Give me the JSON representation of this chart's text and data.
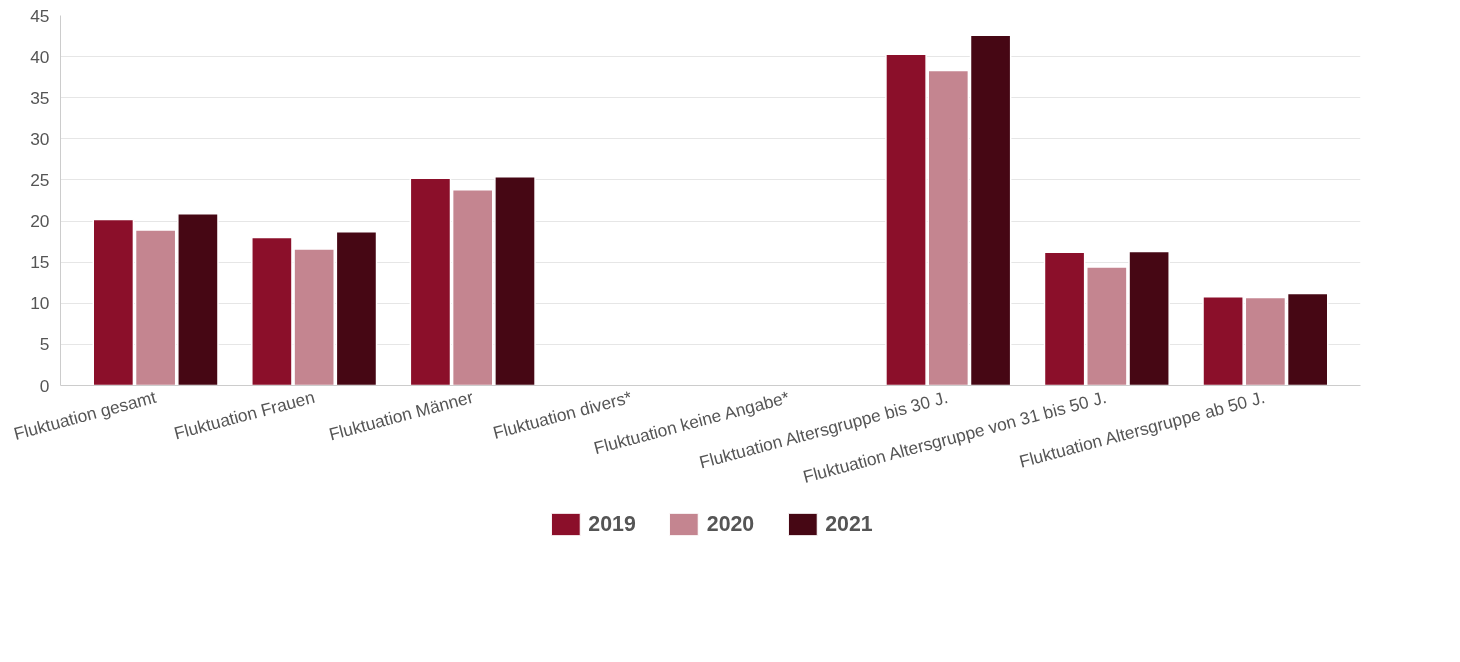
{
  "chart_data": {
    "type": "bar",
    "categories": [
      "Fluktuation gesamt",
      "Fluktuation Frauen",
      "Fluktuation Männer",
      "Fluktuation divers*",
      "Fluktuation keine Angabe*",
      "Fluktuation Altersgruppe bis 30 J.",
      "Fluktuation Altersgruppe von 31 bis 50 J.",
      "Fluktuation Altersgruppe ab 50 J."
    ],
    "series": [
      {
        "name": "2019",
        "color": "#8b0f2a",
        "values": [
          20.2,
          18.0,
          25.2,
          null,
          null,
          40.3,
          16.2,
          10.8
        ]
      },
      {
        "name": "2020",
        "color": "#c48590",
        "values": [
          18.9,
          16.6,
          23.8,
          null,
          null,
          38.3,
          14.4,
          10.7
        ]
      },
      {
        "name": "2021",
        "color": "#460714",
        "values": [
          20.9,
          18.7,
          25.4,
          null,
          null,
          42.6,
          16.3,
          11.2
        ]
      }
    ],
    "ylim": [
      0,
      45
    ],
    "yticks": [
      0,
      5,
      10,
      15,
      20,
      25,
      30,
      35,
      40,
      45
    ],
    "grid": "y",
    "legend": "bottom"
  }
}
